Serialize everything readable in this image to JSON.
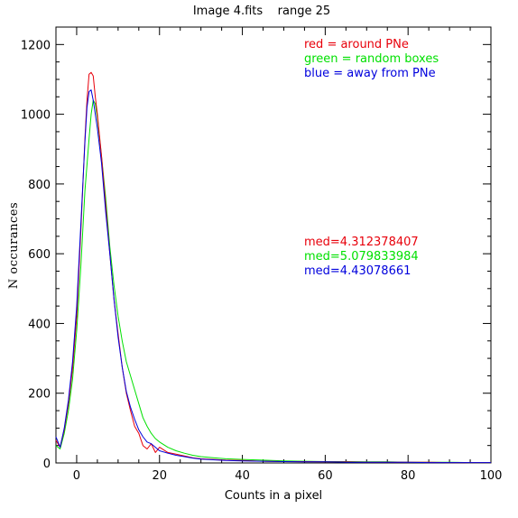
{
  "chart_data": {
    "type": "line",
    "title": "Image 4.fits    range 25",
    "xlabel": "Counts in a pixel",
    "ylabel": "N occurances",
    "xlim": [
      -5,
      100
    ],
    "ylim": [
      0,
      1250
    ],
    "xticks": [
      0,
      20,
      40,
      60,
      80,
      100
    ],
    "yticks": [
      0,
      200,
      400,
      600,
      800,
      1000,
      1200
    ],
    "xtick_labels": [
      "0",
      "20",
      "40",
      "60",
      "80",
      "100"
    ],
    "ytick_labels": [
      "0",
      "200",
      "400",
      "600",
      "800",
      "1000",
      "1200"
    ],
    "grid": false,
    "legend": [
      {
        "text": "red = around PNe",
        "color": "#e8000b"
      },
      {
        "text": "green = random boxes",
        "color": "#00e000"
      },
      {
        "text": "blue = away from PNe",
        "color": "#0000dd"
      }
    ],
    "annotations": [
      {
        "text": "med=4.312378407",
        "color": "#e8000b"
      },
      {
        "text": "med=5.079833984",
        "color": "#00e000"
      },
      {
        "text": "med=4.43078661",
        "color": "#0000dd"
      }
    ],
    "series": [
      {
        "color": "#e8000b",
        "x": [
          -5,
          -4,
          -3,
          -2,
          -1,
          0,
          1,
          2,
          2.5,
          3,
          3.5,
          4,
          4.5,
          5,
          6,
          7,
          8,
          9,
          10,
          11,
          12,
          13,
          14,
          15,
          16,
          17,
          18,
          19,
          20,
          22,
          24,
          26,
          28,
          30,
          33,
          36,
          40,
          45,
          50,
          55,
          60,
          65,
          70,
          75,
          80,
          85,
          90,
          95,
          100
        ],
        "y": [
          65,
          45,
          95,
          170,
          270,
          420,
          660,
          930,
          1040,
          1115,
          1120,
          1110,
          1050,
          1000,
          880,
          740,
          600,
          470,
          370,
          275,
          200,
          150,
          105,
          85,
          50,
          40,
          55,
          30,
          45,
          30,
          25,
          20,
          15,
          12,
          10,
          8,
          7,
          5,
          4,
          4,
          3,
          3,
          2,
          2,
          2,
          2,
          1,
          1,
          1
        ]
      },
      {
        "color": "#00e000",
        "x": [
          -5,
          -4,
          -3,
          -2,
          -1,
          0,
          1,
          2,
          3,
          3.5,
          4,
          4.5,
          5,
          6,
          7,
          8,
          9,
          10,
          11,
          12,
          13,
          14,
          15,
          16,
          17,
          18,
          19,
          20,
          22,
          24,
          26,
          28,
          30,
          33,
          36,
          40,
          45,
          50,
          55,
          60,
          65,
          70,
          75,
          80,
          85,
          90,
          95,
          100
        ],
        "y": [
          50,
          40,
          85,
          150,
          240,
          380,
          560,
          780,
          930,
          1000,
          1040,
          1030,
          990,
          880,
          760,
          620,
          510,
          420,
          350,
          290,
          250,
          210,
          170,
          130,
          105,
          85,
          70,
          60,
          45,
          35,
          28,
          22,
          18,
          15,
          12,
          10,
          8,
          6,
          5,
          4,
          4,
          3,
          3,
          2,
          2,
          2,
          1,
          1
        ]
      },
      {
        "color": "#0000dd",
        "x": [
          -5,
          -4,
          -3,
          -2,
          -1,
          0,
          1,
          2,
          2.5,
          3,
          3.5,
          4,
          4.5,
          5,
          6,
          7,
          8,
          9,
          10,
          11,
          12,
          13,
          14,
          15,
          16,
          17,
          18,
          19,
          20,
          22,
          24,
          26,
          28,
          30,
          33,
          36,
          40,
          45,
          50,
          55,
          60,
          65,
          70,
          75,
          80,
          85,
          90,
          95,
          100
        ],
        "y": [
          75,
          45,
          100,
          180,
          290,
          450,
          680,
          920,
          1020,
          1065,
          1070,
          1040,
          1000,
          960,
          860,
          720,
          600,
          470,
          360,
          275,
          205,
          160,
          125,
          95,
          75,
          60,
          55,
          45,
          35,
          28,
          22,
          18,
          14,
          11,
          9,
          7,
          6,
          5,
          4,
          3,
          3,
          2,
          2,
          2,
          2,
          1,
          1,
          1,
          1
        ]
      }
    ]
  }
}
